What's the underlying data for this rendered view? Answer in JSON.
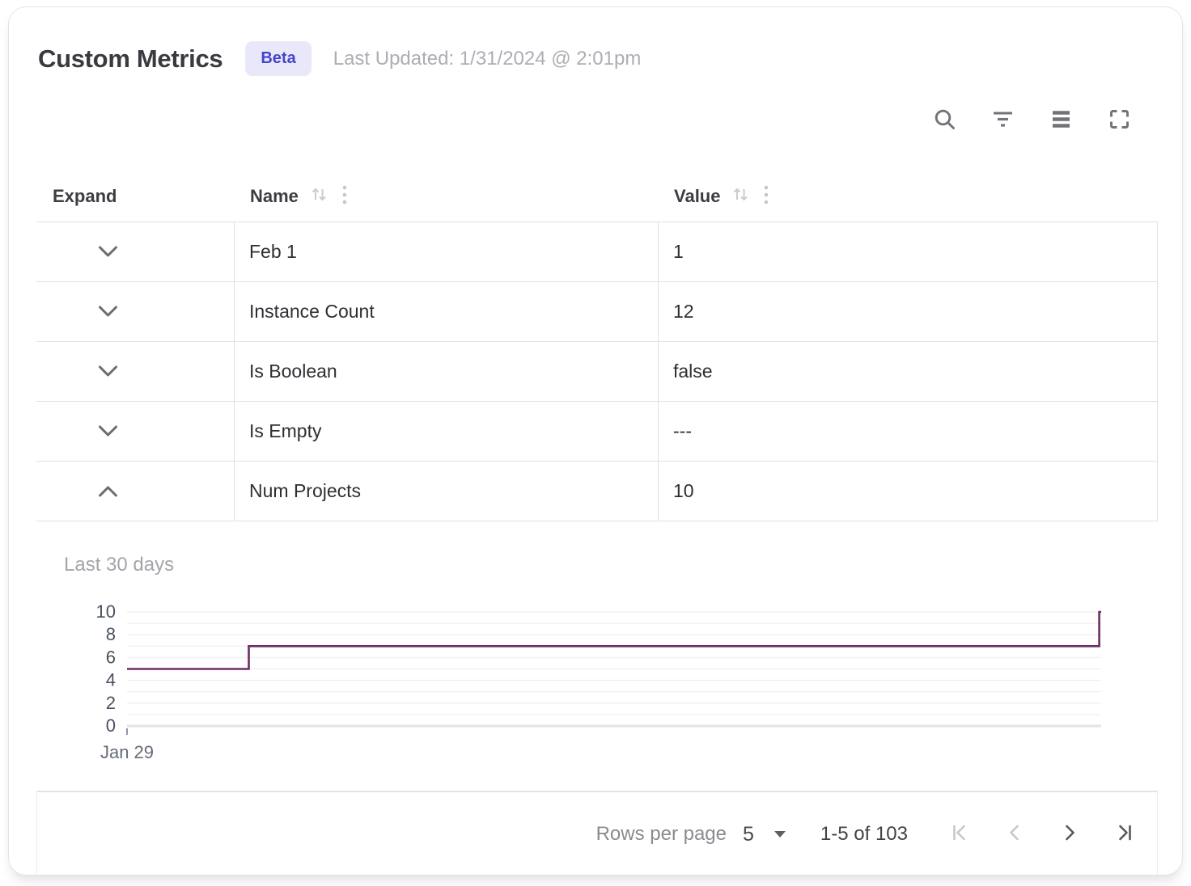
{
  "header": {
    "title": "Custom Metrics",
    "badge": "Beta",
    "last_updated": "Last Updated: 1/31/2024 @ 2:01pm"
  },
  "toolbar": {
    "icons": [
      "search-icon",
      "filter-icon",
      "density-icon",
      "fullscreen-icon"
    ]
  },
  "table": {
    "columns": [
      {
        "label": "Expand",
        "sortable": false
      },
      {
        "label": "Name",
        "sortable": true
      },
      {
        "label": "Value",
        "sortable": true
      }
    ],
    "rows": [
      {
        "name": "Feb 1",
        "value": "1",
        "expanded": false
      },
      {
        "name": "Instance Count",
        "value": "12",
        "expanded": false
      },
      {
        "name": "Is Boolean",
        "value": "false",
        "expanded": false
      },
      {
        "name": "Is Empty",
        "value": "---",
        "expanded": false
      },
      {
        "name": "Num Projects",
        "value": "10",
        "expanded": true
      }
    ]
  },
  "detail_panel": {
    "title": "Last 30 days"
  },
  "chart_data": {
    "type": "line",
    "line_style": "step",
    "title": "Last 30 days",
    "series": [
      {
        "name": "Num Projects",
        "color": "#6e2d62",
        "points": [
          {
            "x": 0,
            "y": 5
          },
          {
            "x": 0.125,
            "y": 5
          },
          {
            "x": 0.125,
            "y": 7
          },
          {
            "x": 0.998,
            "y": 7
          },
          {
            "x": 0.998,
            "y": 10
          },
          {
            "x": 1,
            "y": 10
          }
        ]
      }
    ],
    "ylim": [
      0,
      10
    ],
    "yticks": [
      0,
      2,
      4,
      6,
      8,
      10
    ],
    "gridlines_every": 1,
    "grid": "horizontal",
    "x_tick_labels": [
      "Jan 29"
    ],
    "legend": "none"
  },
  "pagination": {
    "rows_per_page_label": "Rows per page",
    "rows_per_page_value": "5",
    "range_label": "1-5 of 103",
    "buttons": [
      {
        "name": "first-page",
        "enabled": false
      },
      {
        "name": "previous-page",
        "enabled": false
      },
      {
        "name": "next-page",
        "enabled": true
      },
      {
        "name": "last-page",
        "enabled": true
      }
    ]
  },
  "colors": {
    "accent_line": "#6e2d62",
    "badge_bg": "#e9e8fb",
    "badge_text": "#4844c8",
    "grid_border": "#e2e2e5",
    "gridline": "#f0f0f2",
    "axis_label": "#4a5260",
    "muted_text": "#aeadb4",
    "icon_gray": "#737278"
  }
}
